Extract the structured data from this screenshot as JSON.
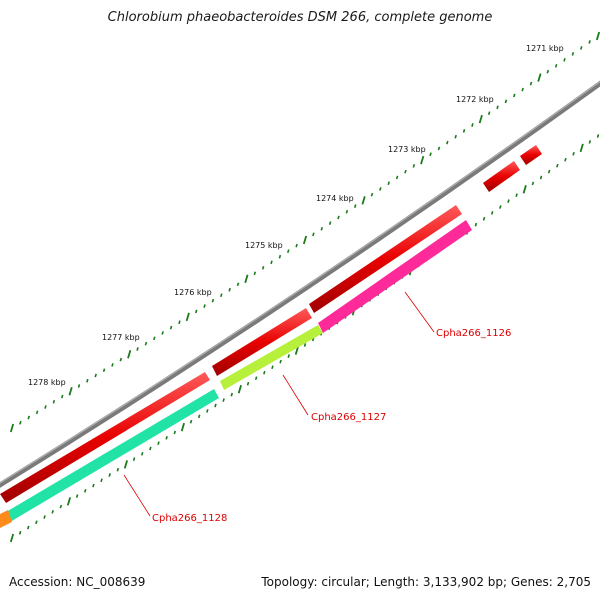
{
  "title": "Chlorobium phaeobacteroides DSM 266, complete genome",
  "kbp_labels": [
    "1271 kbp",
    "1272 kbp",
    "1273 kbp",
    "1274 kbp",
    "1275 kbp",
    "1276 kbp",
    "1277 kbp",
    "1278 kbp"
  ],
  "genes": [
    {
      "name": "Cpha266_1126",
      "color": "#ff2a9a"
    },
    {
      "name": "Cpha266_1127",
      "color": "#b6f03a"
    },
    {
      "name": "Cpha266_1128",
      "color": "#22e3a6"
    }
  ],
  "colors": {
    "forward_gene": "#e80000",
    "backbone": "#808080",
    "ticks": "#1c7a1c",
    "label": "#dd0000",
    "orange_gene": "#ff8c1a"
  },
  "footer": {
    "accession": "Accession: NC_008639",
    "info": "Topology: circular; Length: 3,133,902 bp; Genes: 2,705"
  }
}
